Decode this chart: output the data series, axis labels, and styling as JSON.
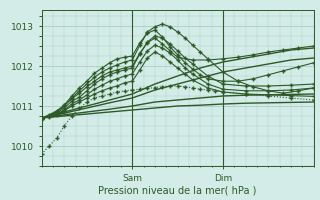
{
  "bg_color": "#d4ece8",
  "grid_color": "#aaccc8",
  "line_color": "#2d5a27",
  "title": "Pression niveau de la mer( hPa )",
  "ylabel_ticks": [
    1010,
    1011,
    1012,
    1013
  ],
  "ylim": [
    1009.5,
    1013.4
  ],
  "xlabel_ticks": [
    24,
    48
  ],
  "xlabel_labels": [
    "Sam",
    "Dim"
  ],
  "xlim": [
    0,
    72
  ],
  "series": [
    {
      "x": [
        0,
        6,
        12,
        18,
        24,
        30,
        36,
        42,
        48,
        54,
        60,
        66,
        72
      ],
      "y": [
        1010.7,
        1010.75,
        1010.8,
        1010.85,
        1010.9,
        1010.95,
        1011.0,
        1011.02,
        1011.05,
        1011.07,
        1011.08,
        1011.09,
        1011.1
      ],
      "marker": null,
      "lw": 1.0
    },
    {
      "x": [
        0,
        6,
        12,
        18,
        24,
        30,
        36,
        42,
        48,
        54,
        60,
        66,
        72
      ],
      "y": [
        1010.7,
        1010.78,
        1010.85,
        1010.92,
        1011.0,
        1011.1,
        1011.15,
        1011.2,
        1011.25,
        1011.27,
        1011.28,
        1011.29,
        1011.3
      ],
      "marker": null,
      "lw": 1.0
    },
    {
      "x": [
        0,
        6,
        12,
        18,
        24,
        30,
        36,
        42,
        48,
        54,
        60,
        66,
        72
      ],
      "y": [
        1010.7,
        1010.82,
        1010.95,
        1011.08,
        1011.2,
        1011.4,
        1011.55,
        1011.7,
        1011.85,
        1011.95,
        1012.05,
        1012.15,
        1012.2
      ],
      "marker": null,
      "lw": 1.0
    },
    {
      "x": [
        0,
        6,
        12,
        18,
        24,
        30,
        36,
        42,
        48,
        54,
        60,
        66,
        72
      ],
      "y": [
        1010.7,
        1010.85,
        1011.0,
        1011.15,
        1011.3,
        1011.55,
        1011.75,
        1011.95,
        1012.1,
        1012.2,
        1012.3,
        1012.4,
        1012.45
      ],
      "marker": null,
      "lw": 1.0
    },
    {
      "x": [
        0,
        2,
        4,
        6,
        8,
        10,
        12,
        14,
        16,
        18,
        20,
        22,
        24,
        26,
        28,
        30,
        32,
        34,
        36,
        38,
        40,
        42,
        44,
        46,
        48,
        54,
        60,
        66,
        72
      ],
      "y": [
        1009.8,
        1010.0,
        1010.2,
        1010.5,
        1010.75,
        1010.95,
        1011.1,
        1011.2,
        1011.25,
        1011.3,
        1011.35,
        1011.38,
        1011.4,
        1011.42,
        1011.44,
        1011.46,
        1011.48,
        1011.5,
        1011.5,
        1011.48,
        1011.45,
        1011.42,
        1011.4,
        1011.38,
        1011.35,
        1011.3,
        1011.25,
        1011.2,
        1011.15
      ],
      "marker": "+",
      "ms": 3.5,
      "lw": 0.8,
      "linestyle": "dotted"
    },
    {
      "x": [
        0,
        2,
        4,
        6,
        8,
        10,
        12,
        14,
        16,
        18,
        20,
        22,
        24,
        26,
        28,
        30,
        32,
        34,
        36,
        38,
        40,
        44,
        48,
        54,
        60,
        66,
        72
      ],
      "y": [
        1010.7,
        1010.73,
        1010.78,
        1010.88,
        1011.0,
        1011.1,
        1011.2,
        1011.3,
        1011.38,
        1011.45,
        1011.5,
        1011.58,
        1011.62,
        1011.9,
        1012.2,
        1012.35,
        1012.25,
        1012.1,
        1011.95,
        1011.8,
        1011.65,
        1011.45,
        1011.35,
        1011.3,
        1011.28,
        1011.26,
        1011.24
      ],
      "marker": "+",
      "ms": 3.5,
      "lw": 0.8
    },
    {
      "x": [
        0,
        2,
        4,
        6,
        8,
        10,
        12,
        14,
        16,
        18,
        20,
        22,
        24,
        26,
        28,
        30,
        32,
        34,
        36,
        38,
        40,
        44,
        48,
        54,
        60,
        66,
        72
      ],
      "y": [
        1010.7,
        1010.74,
        1010.8,
        1010.9,
        1011.05,
        1011.15,
        1011.28,
        1011.42,
        1011.52,
        1011.62,
        1011.68,
        1011.75,
        1011.8,
        1012.1,
        1012.38,
        1012.52,
        1012.45,
        1012.32,
        1012.15,
        1011.95,
        1011.8,
        1011.55,
        1011.42,
        1011.38,
        1011.38,
        1011.4,
        1011.45
      ],
      "marker": "+",
      "ms": 3.5,
      "lw": 0.8
    },
    {
      "x": [
        0,
        2,
        4,
        6,
        8,
        10,
        12,
        14,
        16,
        18,
        20,
        22,
        24,
        26,
        28,
        30,
        32,
        34,
        36,
        38,
        40,
        44,
        48,
        54,
        60,
        66,
        72
      ],
      "y": [
        1010.7,
        1010.75,
        1010.82,
        1010.95,
        1011.12,
        1011.22,
        1011.38,
        1011.55,
        1011.68,
        1011.78,
        1011.85,
        1011.9,
        1011.95,
        1012.3,
        1012.6,
        1012.75,
        1012.7,
        1012.55,
        1012.38,
        1012.2,
        1012.05,
        1011.75,
        1011.55,
        1011.5,
        1011.5,
        1011.52,
        1011.55
      ],
      "marker": "+",
      "ms": 3.5,
      "lw": 0.8
    },
    {
      "x": [
        0,
        2,
        4,
        6,
        8,
        10,
        12,
        14,
        16,
        18,
        20,
        22,
        24,
        26,
        28,
        30,
        32,
        34,
        36,
        38,
        40,
        42,
        44,
        48,
        52,
        56,
        60,
        64,
        68,
        72
      ],
      "y": [
        1010.68,
        1010.76,
        1010.85,
        1011.0,
        1011.2,
        1011.38,
        1011.55,
        1011.72,
        1011.85,
        1011.95,
        1012.03,
        1012.1,
        1012.15,
        1012.52,
        1012.85,
        1012.98,
        1013.05,
        1012.98,
        1012.85,
        1012.7,
        1012.52,
        1012.35,
        1012.18,
        1011.85,
        1011.62,
        1011.48,
        1011.38,
        1011.32,
        1011.38,
        1011.45
      ],
      "marker": "+",
      "ms": 3.5,
      "lw": 0.8
    },
    {
      "x": [
        0,
        2,
        4,
        6,
        8,
        10,
        12,
        14,
        16,
        18,
        20,
        22,
        24,
        26,
        28,
        30,
        32,
        34,
        36,
        38,
        40,
        42,
        44,
        48,
        52,
        56,
        60,
        64,
        68,
        72
      ],
      "y": [
        1010.68,
        1010.76,
        1010.85,
        1011.02,
        1011.25,
        1011.45,
        1011.62,
        1011.82,
        1011.95,
        1012.08,
        1012.18,
        1012.22,
        1012.25,
        1012.58,
        1012.82,
        1012.9,
        1012.72,
        1012.48,
        1012.28,
        1012.08,
        1011.92,
        1011.78,
        1011.68,
        1011.62,
        1011.62,
        1011.68,
        1011.78,
        1011.88,
        1011.98,
        1012.08
      ],
      "marker": "+",
      "ms": 3.5,
      "lw": 0.8
    },
    {
      "x": [
        0,
        2,
        4,
        6,
        8,
        10,
        12,
        14,
        16,
        18,
        20,
        22,
        24,
        26,
        28,
        30,
        32,
        34,
        36,
        40,
        44,
        48,
        52,
        56,
        60,
        64,
        68,
        72
      ],
      "y": [
        1010.7,
        1010.78,
        1010.88,
        1011.02,
        1011.18,
        1011.32,
        1011.48,
        1011.62,
        1011.75,
        1011.85,
        1011.9,
        1011.95,
        1012.0,
        1012.32,
        1012.58,
        1012.7,
        1012.55,
        1012.38,
        1012.22,
        1012.15,
        1012.15,
        1012.18,
        1012.22,
        1012.28,
        1012.35,
        1012.4,
        1012.45,
        1012.5
      ],
      "marker": "+",
      "ms": 3.5,
      "lw": 0.8
    }
  ],
  "vlines": [
    24,
    48
  ],
  "vline_color": "#2d5a27"
}
